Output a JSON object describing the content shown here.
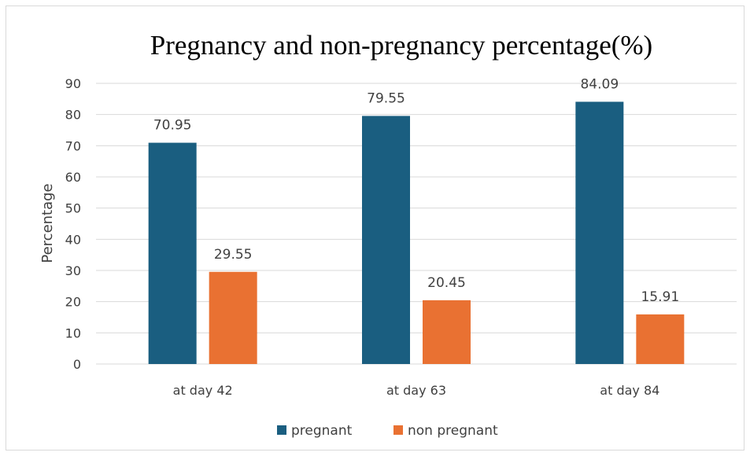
{
  "chart_data": {
    "type": "bar",
    "title": "Pregnancy and non-pregnancy percentage(%)",
    "xlabel": "",
    "ylabel": "Percentage",
    "categories": [
      "at day 42",
      "at day 63",
      "at day 84"
    ],
    "series": [
      {
        "name": "pregnant",
        "values": [
          70.95,
          79.55,
          84.09
        ],
        "color": "#1a5e80"
      },
      {
        "name": "non pregnant",
        "values": [
          29.55,
          20.45,
          15.91
        ],
        "color": "#e97132"
      }
    ],
    "ylim": [
      0,
      90
    ],
    "yticks": [
      0,
      10,
      20,
      30,
      40,
      50,
      60,
      70,
      80,
      90
    ],
    "grid": true,
    "legend": "bottom",
    "data_labels": true
  }
}
